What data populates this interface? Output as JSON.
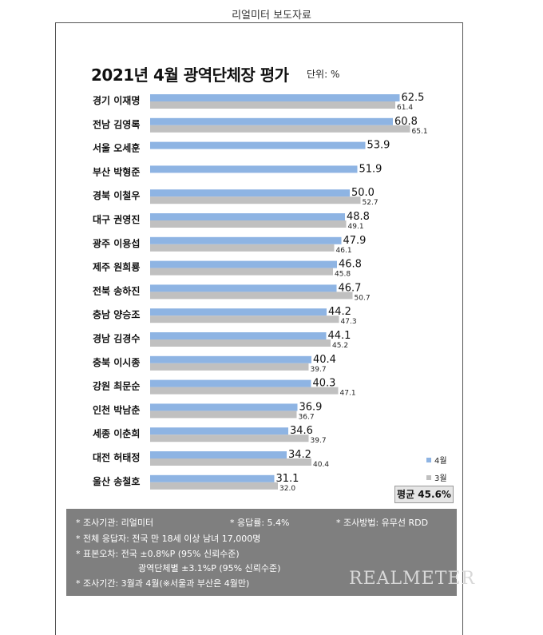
{
  "header": {
    "title": "리얼미터 보도자료"
  },
  "chart_data": {
    "type": "bar",
    "title": "2021년 4월 광역단체장 평가",
    "unit": "단위: %",
    "categories": [
      "경기 이재명",
      "전남 김영록",
      "서울 오세훈",
      "부산 박형준",
      "경북 이철우",
      "대구 권영진",
      "광주 이용섭",
      "제주 원희룡",
      "전북 송하진",
      "충남 양승조",
      "경남 김경수",
      "충북 이시종",
      "강원 최문순",
      "인천 박남춘",
      "세종 이춘희",
      "대전 허태정",
      "울산 송철호"
    ],
    "series": [
      {
        "name": "4월",
        "color": "#8eb4e3",
        "values": [
          62.5,
          60.8,
          53.9,
          51.9,
          50.0,
          48.8,
          47.9,
          46.8,
          46.7,
          44.2,
          44.1,
          40.4,
          40.3,
          36.9,
          34.6,
          34.2,
          31.1
        ]
      },
      {
        "name": "3월",
        "color": "#c0c0c0",
        "values": [
          61.4,
          65.1,
          null,
          null,
          52.7,
          49.1,
          46.1,
          45.8,
          50.7,
          47.3,
          45.2,
          39.7,
          47.1,
          36.7,
          39.7,
          40.4,
          32.0
        ]
      }
    ],
    "labels_april": [
      "62.5",
      "60.8",
      "53.9",
      "51.9",
      "50.0",
      "48.8",
      "47.9",
      "46.8",
      "46.7",
      "44.2",
      "44.1",
      "40.4",
      "40.3",
      "36.9",
      "34.6",
      "34.2",
      "31.1"
    ],
    "labels_march": [
      "61.4",
      "65.1",
      "",
      "",
      "52.7",
      "49.1",
      "46.1",
      "45.8",
      "50.7",
      "47.3",
      "45.2",
      "39.7",
      "47.1",
      "36.7",
      "39.7",
      "40.4",
      "32.0"
    ],
    "xlim": [
      0,
      66
    ],
    "legend_position": "bottom-right",
    "grid": false,
    "average_label": "평균 45.6%"
  },
  "info": {
    "line1_a": "* 조사기관: 리얼미터",
    "line1_b": "* 응답률: 5.4%",
    "line1_c": "* 조사방법: 유무선 RDD",
    "line2": "* 전체 응답자: 전국 만 18세 이상 남녀 17,000명",
    "line3": "* 표본오차: 전국 ±0.8%P (95% 신뢰수준)",
    "line4": "광역단체별 ±3.1%P (95% 신뢰수준)",
    "line5": "* 조사기간: 3월과 4월(※서울과 부산은 4월만)"
  },
  "brand": "REALMETER"
}
